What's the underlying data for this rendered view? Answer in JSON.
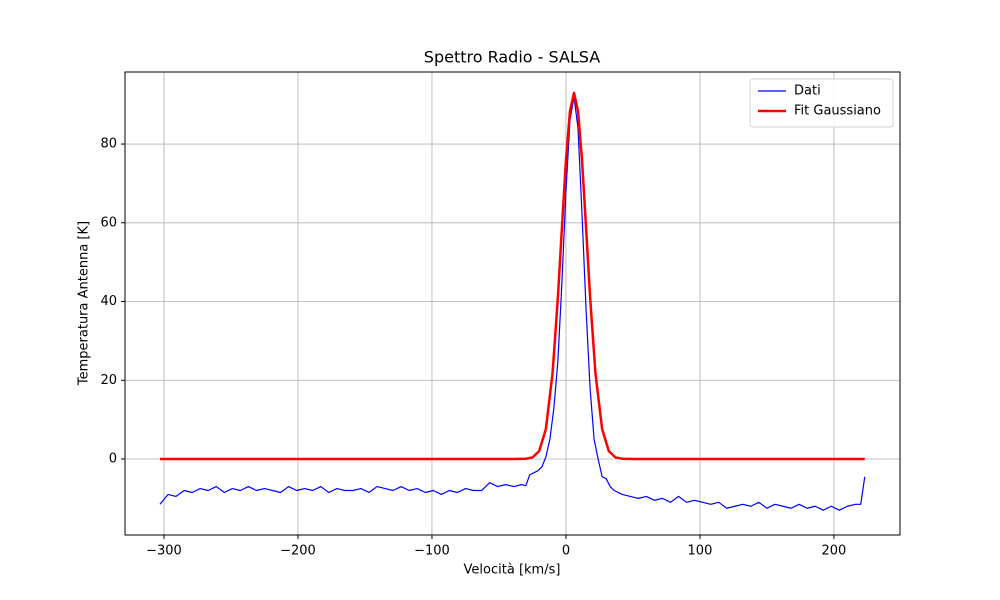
{
  "chart_data": {
    "type": "line",
    "title": "Spettro Radio - SALSA",
    "xlabel": "Velocità [km/s]",
    "ylabel": "Temperatura Antenna [K]",
    "xlim": [
      -329.1,
      249.3
    ],
    "ylim": [
      -19.3,
      98.3
    ],
    "xticks": [
      {
        "value": -300,
        "label": "−300"
      },
      {
        "value": -200,
        "label": "−200"
      },
      {
        "value": -100,
        "label": "−100"
      },
      0,
      100,
      200
    ],
    "yticks": [
      0,
      20,
      40,
      60,
      80
    ],
    "grid": true,
    "legend": "upper-right",
    "series": [
      {
        "name": "Dati",
        "color": "#0000ff",
        "width": 1.2,
        "x": [
          -303,
          -297,
          -291,
          -285,
          -279,
          -273,
          -267,
          -261,
          -255,
          -249,
          -243,
          -237,
          -231,
          -225,
          -219,
          -213,
          -207,
          -201,
          -195,
          -189,
          -183,
          -177,
          -171,
          -165,
          -159,
          -153,
          -147,
          -141,
          -135,
          -129,
          -123,
          -117,
          -111,
          -105,
          -99,
          -93,
          -87,
          -81,
          -75,
          -69,
          -63,
          -57,
          -51,
          -45,
          -39,
          -33,
          -30,
          -27,
          -24,
          -21,
          -18,
          -15,
          -12,
          -9,
          -6,
          -3,
          0,
          3,
          6,
          9,
          12,
          15,
          18,
          21,
          24,
          27,
          30,
          33,
          36,
          42,
          48,
          54,
          60,
          66,
          72,
          78,
          84,
          90,
          96,
          102,
          108,
          114,
          120,
          126,
          132,
          138,
          144,
          150,
          156,
          162,
          168,
          174,
          180,
          186,
          192,
          198,
          204,
          210,
          216,
          220,
          223
        ],
        "values": [
          -11.5,
          -9,
          -9.5,
          -8,
          -8.5,
          -7.5,
          -8,
          -7,
          -8.5,
          -7.5,
          -8,
          -7,
          -8,
          -7.5,
          -8,
          -8.5,
          -7,
          -8,
          -7.5,
          -8,
          -7,
          -8.5,
          -7.5,
          -8,
          -8,
          -7.5,
          -8.5,
          -7,
          -7.5,
          -8,
          -7,
          -8,
          -7.5,
          -8.5,
          -8,
          -9,
          -8,
          -8.5,
          -7.5,
          -8,
          -8,
          -6,
          -7,
          -6.5,
          -7,
          -6.5,
          -6.8,
          -4,
          -3.5,
          -3,
          -2,
          0.5,
          5,
          13,
          25,
          45,
          68,
          86,
          92,
          84,
          62,
          38,
          18,
          5,
          0,
          -4.5,
          -5,
          -7,
          -8,
          -9,
          -9.5,
          -10,
          -9.5,
          -10.5,
          -10,
          -11,
          -9.5,
          -11,
          -10.5,
          -11,
          -11.5,
          -11,
          -12.5,
          -12,
          -11.5,
          -12,
          -11,
          -12.5,
          -11.5,
          -12,
          -12.5,
          -11.5,
          -12.5,
          -12,
          -13,
          -12,
          -13,
          -12,
          -11.5,
          -11.5,
          -4.5
        ]
      },
      {
        "name": "Fit Gaussiano",
        "color": "#ff0000",
        "width": 2.5,
        "x": [
          -303,
          -40,
          -30,
          -25,
          -20,
          -15,
          -10,
          -6,
          -3,
          0,
          3,
          6,
          9,
          12,
          15,
          18,
          22,
          27,
          32,
          37,
          42,
          52,
          223
        ],
        "values": [
          0,
          0,
          0.06,
          0.4,
          2,
          7.6,
          21.8,
          41.2,
          58.8,
          75.9,
          88.4,
          93,
          88.4,
          75.9,
          58.8,
          41.2,
          21.8,
          7.6,
          2,
          0.4,
          0.06,
          0,
          0
        ]
      }
    ]
  }
}
